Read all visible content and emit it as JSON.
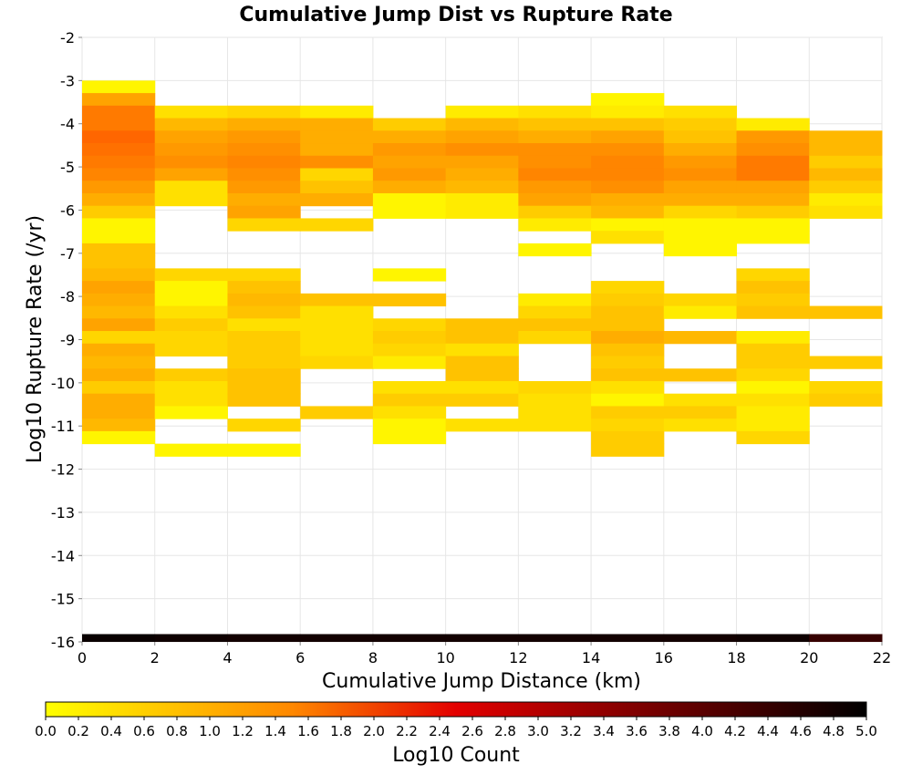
{
  "chart_data": {
    "type": "heatmap",
    "title": "Cumulative Jump Dist vs Rupture Rate",
    "xlabel": "Cumulative Jump Distance (km)",
    "ylabel": "Log10 Rupture Rate (/yr)",
    "xlim": [
      0,
      22
    ],
    "ylim": [
      -16,
      -2
    ],
    "x_ticks": [
      "0",
      "2",
      "4",
      "6",
      "8",
      "10",
      "12",
      "14",
      "16",
      "18",
      "20",
      "22"
    ],
    "y_ticks": [
      "-2",
      "-3",
      "-4",
      "-5",
      "-6",
      "-7",
      "-8",
      "-9",
      "-10",
      "-11",
      "-12",
      "-13",
      "-14",
      "-15",
      "-16"
    ],
    "grid": true,
    "x_bin_width": 2,
    "y_bin_height": 0.29,
    "colorbar": {
      "label": "Log10 Count",
      "min": 0.0,
      "max": 5.0,
      "ticks": [
        "0.0",
        "0.2",
        "0.4",
        "0.6",
        "0.8",
        "1.0",
        "1.2",
        "1.4",
        "1.6",
        "1.8",
        "2.0",
        "2.2",
        "2.4",
        "2.6",
        "2.8",
        "3.0",
        "3.2",
        "3.4",
        "3.6",
        "3.8",
        "4.0",
        "4.2",
        "4.4",
        "4.6",
        "4.8",
        "5.0"
      ],
      "colors": [
        "#ffff00",
        "#ff6600",
        "#e30000",
        "#000000"
      ]
    },
    "columns": [
      {
        "x0": 0,
        "cells": [
          {
            "y_top": -3.0,
            "value": 0.1
          },
          {
            "y_top": -3.29,
            "value": 0.9
          },
          {
            "y_top": -3.58,
            "value": 1.3
          },
          {
            "y_top": -3.87,
            "value": 1.3
          },
          {
            "y_top": -4.16,
            "value": 1.5
          },
          {
            "y_top": -4.45,
            "value": 1.4
          },
          {
            "y_top": -4.74,
            "value": 1.3
          },
          {
            "y_top": -5.03,
            "value": 1.2
          },
          {
            "y_top": -5.32,
            "value": 1.0
          },
          {
            "y_top": -5.61,
            "value": 0.8
          },
          {
            "y_top": -5.9,
            "value": 0.5
          },
          {
            "y_top": -6.19,
            "value": 0.1
          },
          {
            "y_top": -6.48,
            "value": 0.1
          },
          {
            "y_top": -6.77,
            "value": 0.6
          },
          {
            "y_top": -7.06,
            "value": 0.6
          },
          {
            "y_top": -7.35,
            "value": 0.7
          },
          {
            "y_top": -7.64,
            "value": 0.9
          },
          {
            "y_top": -7.93,
            "value": 0.8
          },
          {
            "y_top": -8.22,
            "value": 0.7
          },
          {
            "y_top": -8.51,
            "value": 0.9
          },
          {
            "y_top": -8.8,
            "value": 0.4
          },
          {
            "y_top": -9.09,
            "value": 0.8
          },
          {
            "y_top": -9.38,
            "value": 0.7
          },
          {
            "y_top": -9.67,
            "value": 0.8
          },
          {
            "y_top": -9.96,
            "value": 0.5
          },
          {
            "y_top": -10.25,
            "value": 0.8
          },
          {
            "y_top": -10.54,
            "value": 0.8
          },
          {
            "y_top": -10.83,
            "value": 0.7
          },
          {
            "y_top": -11.12,
            "value": 0.1
          }
        ]
      },
      {
        "x0": 2,
        "cells": [
          {
            "y_top": -3.58,
            "value": 0.3
          },
          {
            "y_top": -3.87,
            "value": 0.7
          },
          {
            "y_top": -4.16,
            "value": 0.9
          },
          {
            "y_top": -4.45,
            "value": 1.0
          },
          {
            "y_top": -4.74,
            "value": 1.1
          },
          {
            "y_top": -5.03,
            "value": 0.9
          },
          {
            "y_top": -5.32,
            "value": 0.3
          },
          {
            "y_top": -5.61,
            "value": 0.3
          },
          {
            "y_top": -7.35,
            "value": 0.4
          },
          {
            "y_top": -7.64,
            "value": 0.1
          },
          {
            "y_top": -7.93,
            "value": 0.1
          },
          {
            "y_top": -8.22,
            "value": 0.3
          },
          {
            "y_top": -8.51,
            "value": 0.5
          },
          {
            "y_top": -8.8,
            "value": 0.4
          },
          {
            "y_top": -9.09,
            "value": 0.4
          },
          {
            "y_top": -9.67,
            "value": 0.5
          },
          {
            "y_top": -9.96,
            "value": 0.3
          },
          {
            "y_top": -10.25,
            "value": 0.3
          },
          {
            "y_top": -10.54,
            "value": 0.1
          },
          {
            "y_top": -11.41,
            "value": 0.1
          }
        ]
      },
      {
        "x0": 4,
        "cells": [
          {
            "y_top": -3.58,
            "value": 0.4
          },
          {
            "y_top": -3.87,
            "value": 0.8
          },
          {
            "y_top": -4.16,
            "value": 1.0
          },
          {
            "y_top": -4.45,
            "value": 1.1
          },
          {
            "y_top": -4.74,
            "value": 1.2
          },
          {
            "y_top": -5.03,
            "value": 1.1
          },
          {
            "y_top": -5.32,
            "value": 1.0
          },
          {
            "y_top": -5.61,
            "value": 0.8
          },
          {
            "y_top": -5.9,
            "value": 0.9
          },
          {
            "y_top": -6.19,
            "value": 0.4
          },
          {
            "y_top": -7.35,
            "value": 0.4
          },
          {
            "y_top": -7.64,
            "value": 0.6
          },
          {
            "y_top": -7.93,
            "value": 0.7
          },
          {
            "y_top": -8.22,
            "value": 0.6
          },
          {
            "y_top": -8.51,
            "value": 0.3
          },
          {
            "y_top": -8.8,
            "value": 0.5
          },
          {
            "y_top": -9.09,
            "value": 0.5
          },
          {
            "y_top": -9.38,
            "value": 0.5
          },
          {
            "y_top": -9.67,
            "value": 0.6
          },
          {
            "y_top": -9.96,
            "value": 0.6
          },
          {
            "y_top": -10.25,
            "value": 0.6
          },
          {
            "y_top": -10.83,
            "value": 0.4
          },
          {
            "y_top": -11.41,
            "value": 0.1
          }
        ]
      },
      {
        "x0": 6,
        "cells": [
          {
            "y_top": -3.58,
            "value": 0.2
          },
          {
            "y_top": -3.87,
            "value": 0.8
          },
          {
            "y_top": -4.16,
            "value": 0.8
          },
          {
            "y_top": -4.45,
            "value": 0.8
          },
          {
            "y_top": -4.74,
            "value": 1.1
          },
          {
            "y_top": -5.03,
            "value": 0.4
          },
          {
            "y_top": -5.32,
            "value": 0.6
          },
          {
            "y_top": -5.61,
            "value": 0.8
          },
          {
            "y_top": -6.19,
            "value": 0.4
          },
          {
            "y_top": -7.93,
            "value": 0.6
          },
          {
            "y_top": -8.22,
            "value": 0.3
          },
          {
            "y_top": -8.51,
            "value": 0.3
          },
          {
            "y_top": -8.8,
            "value": 0.3
          },
          {
            "y_top": -9.09,
            "value": 0.3
          },
          {
            "y_top": -9.38,
            "value": 0.4
          },
          {
            "y_top": -10.54,
            "value": 0.5
          }
        ]
      },
      {
        "x0": 8,
        "cells": [
          {
            "y_top": -3.87,
            "value": 0.5
          },
          {
            "y_top": -4.16,
            "value": 0.8
          },
          {
            "y_top": -4.45,
            "value": 1.0
          },
          {
            "y_top": -4.74,
            "value": 0.9
          },
          {
            "y_top": -5.03,
            "value": 1.0
          },
          {
            "y_top": -5.32,
            "value": 0.8
          },
          {
            "y_top": -5.61,
            "value": 0.1
          },
          {
            "y_top": -5.9,
            "value": 0.1
          },
          {
            "y_top": -7.35,
            "value": 0.1
          },
          {
            "y_top": -7.93,
            "value": 0.6
          },
          {
            "y_top": -8.51,
            "value": 0.4
          },
          {
            "y_top": -8.8,
            "value": 0.5
          },
          {
            "y_top": -9.09,
            "value": 0.4
          },
          {
            "y_top": -9.38,
            "value": 0.2
          },
          {
            "y_top": -9.96,
            "value": 0.3
          },
          {
            "y_top": -10.25,
            "value": 0.5
          },
          {
            "y_top": -10.54,
            "value": 0.3
          },
          {
            "y_top": -10.83,
            "value": 0.1
          },
          {
            "y_top": -11.12,
            "value": 0.1
          }
        ]
      },
      {
        "x0": 10,
        "cells": [
          {
            "y_top": -3.58,
            "value": 0.2
          },
          {
            "y_top": -3.87,
            "value": 0.7
          },
          {
            "y_top": -4.16,
            "value": 0.9
          },
          {
            "y_top": -4.45,
            "value": 1.1
          },
          {
            "y_top": -4.74,
            "value": 0.9
          },
          {
            "y_top": -5.03,
            "value": 0.8
          },
          {
            "y_top": -5.32,
            "value": 0.7
          },
          {
            "y_top": -5.61,
            "value": 0.2
          },
          {
            "y_top": -5.9,
            "value": 0.2
          },
          {
            "y_top": -8.51,
            "value": 0.6
          },
          {
            "y_top": -8.8,
            "value": 0.6
          },
          {
            "y_top": -9.09,
            "value": 0.3
          },
          {
            "y_top": -9.38,
            "value": 0.6
          },
          {
            "y_top": -9.67,
            "value": 0.6
          },
          {
            "y_top": -9.96,
            "value": 0.3
          },
          {
            "y_top": -10.25,
            "value": 0.5
          },
          {
            "y_top": -10.83,
            "value": 0.3
          }
        ]
      },
      {
        "x0": 12,
        "cells": [
          {
            "y_top": -3.58,
            "value": 0.3
          },
          {
            "y_top": -3.87,
            "value": 0.6
          },
          {
            "y_top": -4.16,
            "value": 0.8
          },
          {
            "y_top": -4.45,
            "value": 1.1
          },
          {
            "y_top": -4.74,
            "value": 1.1
          },
          {
            "y_top": -5.03,
            "value": 1.2
          },
          {
            "y_top": -5.32,
            "value": 1.0
          },
          {
            "y_top": -5.61,
            "value": 0.9
          },
          {
            "y_top": -5.9,
            "value": 0.5
          },
          {
            "y_top": -6.19,
            "value": 0.2
          },
          {
            "y_top": -6.77,
            "value": 0.1
          },
          {
            "y_top": -7.93,
            "value": 0.2
          },
          {
            "y_top": -8.22,
            "value": 0.4
          },
          {
            "y_top": -8.51,
            "value": 0.6
          },
          {
            "y_top": -8.8,
            "value": 0.4
          },
          {
            "y_top": -9.96,
            "value": 0.4
          },
          {
            "y_top": -10.25,
            "value": 0.3
          },
          {
            "y_top": -10.54,
            "value": 0.3
          },
          {
            "y_top": -10.83,
            "value": 0.3
          }
        ]
      },
      {
        "x0": 14,
        "cells": [
          {
            "y_top": -3.29,
            "value": 0.1
          },
          {
            "y_top": -3.58,
            "value": 0.2
          },
          {
            "y_top": -3.87,
            "value": 0.6
          },
          {
            "y_top": -4.16,
            "value": 0.9
          },
          {
            "y_top": -4.45,
            "value": 1.1
          },
          {
            "y_top": -4.74,
            "value": 1.2
          },
          {
            "y_top": -5.03,
            "value": 1.2
          },
          {
            "y_top": -5.32,
            "value": 1.1
          },
          {
            "y_top": -5.61,
            "value": 0.8
          },
          {
            "y_top": -5.9,
            "value": 0.7
          },
          {
            "y_top": -6.19,
            "value": 0.1
          },
          {
            "y_top": -6.48,
            "value": 0.3
          },
          {
            "y_top": -7.64,
            "value": 0.4
          },
          {
            "y_top": -7.93,
            "value": 0.5
          },
          {
            "y_top": -8.22,
            "value": 0.6
          },
          {
            "y_top": -8.51,
            "value": 0.6
          },
          {
            "y_top": -8.8,
            "value": 0.8
          },
          {
            "y_top": -9.09,
            "value": 0.6
          },
          {
            "y_top": -9.38,
            "value": 0.5
          },
          {
            "y_top": -9.67,
            "value": 0.6
          },
          {
            "y_top": -9.96,
            "value": 0.3
          },
          {
            "y_top": -10.25,
            "value": 0.1
          },
          {
            "y_top": -10.54,
            "value": 0.5
          },
          {
            "y_top": -10.83,
            "value": 0.4
          },
          {
            "y_top": -11.12,
            "value": 0.5
          },
          {
            "y_top": -11.41,
            "value": 0.5
          }
        ]
      },
      {
        "x0": 16,
        "cells": [
          {
            "y_top": -3.58,
            "value": 0.3
          },
          {
            "y_top": -3.87,
            "value": 0.5
          },
          {
            "y_top": -4.16,
            "value": 0.6
          },
          {
            "y_top": -4.45,
            "value": 0.8
          },
          {
            "y_top": -4.74,
            "value": 1.0
          },
          {
            "y_top": -5.03,
            "value": 1.1
          },
          {
            "y_top": -5.32,
            "value": 0.9
          },
          {
            "y_top": -5.61,
            "value": 0.8
          },
          {
            "y_top": -5.9,
            "value": 0.4
          },
          {
            "y_top": -6.19,
            "value": 0.1
          },
          {
            "y_top": -6.48,
            "value": 0.1
          },
          {
            "y_top": -6.77,
            "value": 0.1
          },
          {
            "y_top": -7.93,
            "value": 0.4
          },
          {
            "y_top": -8.22,
            "value": 0.2
          },
          {
            "y_top": -8.8,
            "value": 0.7
          },
          {
            "y_top": -9.67,
            "value": 0.6
          },
          {
            "y_top": -10.25,
            "value": 0.3
          },
          {
            "y_top": -10.54,
            "value": 0.5
          },
          {
            "y_top": -10.83,
            "value": 0.3
          }
        ]
      },
      {
        "x0": 18,
        "cells": [
          {
            "y_top": -3.87,
            "value": 0.2
          },
          {
            "y_top": -4.16,
            "value": 1.0
          },
          {
            "y_top": -4.45,
            "value": 1.1
          },
          {
            "y_top": -4.74,
            "value": 1.3
          },
          {
            "y_top": -5.03,
            "value": 1.3
          },
          {
            "y_top": -5.32,
            "value": 0.9
          },
          {
            "y_top": -5.61,
            "value": 0.8
          },
          {
            "y_top": -5.9,
            "value": 0.5
          },
          {
            "y_top": -6.19,
            "value": 0.1
          },
          {
            "y_top": -6.48,
            "value": 0.1
          },
          {
            "y_top": -7.35,
            "value": 0.4
          },
          {
            "y_top": -7.64,
            "value": 0.6
          },
          {
            "y_top": -7.93,
            "value": 0.5
          },
          {
            "y_top": -8.22,
            "value": 0.6
          },
          {
            "y_top": -8.8,
            "value": 0.2
          },
          {
            "y_top": -9.09,
            "value": 0.5
          },
          {
            "y_top": -9.38,
            "value": 0.5
          },
          {
            "y_top": -9.67,
            "value": 0.4
          },
          {
            "y_top": -9.96,
            "value": 0.1
          },
          {
            "y_top": -10.25,
            "value": 0.3
          },
          {
            "y_top": -10.54,
            "value": 0.2
          },
          {
            "y_top": -10.83,
            "value": 0.2
          },
          {
            "y_top": -11.12,
            "value": 0.4
          }
        ]
      },
      {
        "x0": 20,
        "cells": [
          {
            "y_top": -4.16,
            "value": 0.7
          },
          {
            "y_top": -4.45,
            "value": 0.7
          },
          {
            "y_top": -4.74,
            "value": 0.5
          },
          {
            "y_top": -5.03,
            "value": 0.7
          },
          {
            "y_top": -5.32,
            "value": 0.5
          },
          {
            "y_top": -5.61,
            "value": 0.2
          },
          {
            "y_top": -5.9,
            "value": 0.3
          },
          {
            "y_top": -8.22,
            "value": 0.6
          },
          {
            "y_top": -9.38,
            "value": 0.5
          },
          {
            "y_top": -9.96,
            "value": 0.4
          },
          {
            "y_top": -10.25,
            "value": 0.5
          }
        ]
      }
    ],
    "bottom_band": [
      {
        "x0": 0,
        "value": 4.9
      },
      {
        "x0": 2,
        "value": 4.85
      },
      {
        "x0": 4,
        "value": 4.8
      },
      {
        "x0": 6,
        "value": 4.8
      },
      {
        "x0": 8,
        "value": 4.8
      },
      {
        "x0": 10,
        "value": 4.8
      },
      {
        "x0": 12,
        "value": 4.8
      },
      {
        "x0": 14,
        "value": 4.8
      },
      {
        "x0": 16,
        "value": 4.8
      },
      {
        "x0": 18,
        "value": 4.85
      },
      {
        "x0": 20,
        "value": 4.4
      }
    ]
  }
}
